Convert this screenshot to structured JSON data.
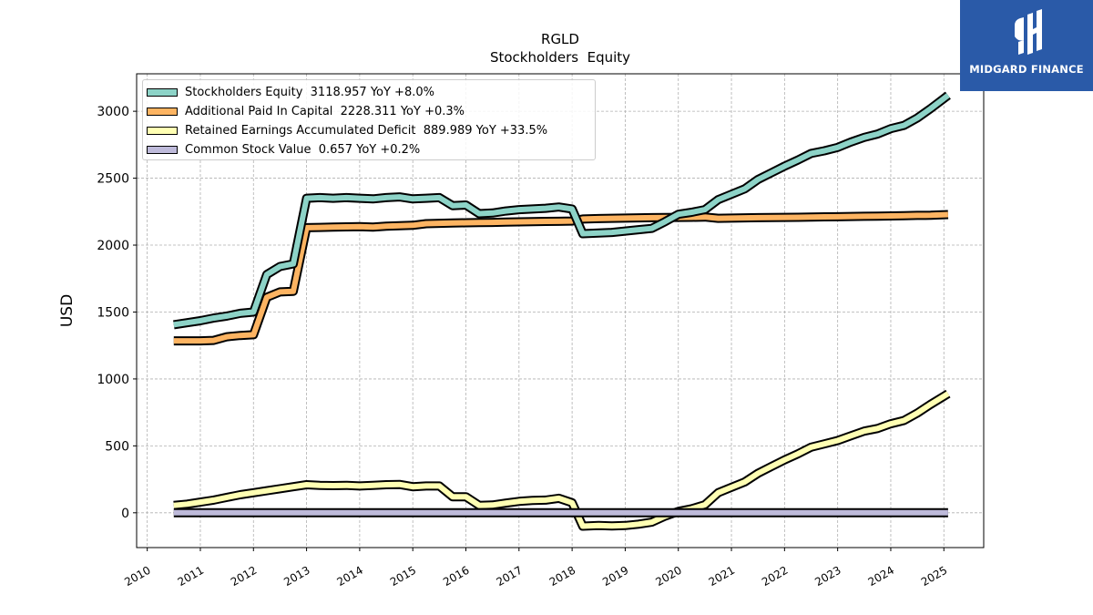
{
  "logo": {
    "name": "MIDGARD FINANCE",
    "accent": "#2a5aa8"
  },
  "chart_data": {
    "type": "line",
    "title": "RGLD",
    "subtitle": "Stockholders  Equity",
    "xlabel": "",
    "ylabel": "USD",
    "xlim": [
      2009.8,
      2025.75
    ],
    "ylim": [
      -260,
      3280
    ],
    "xticks": [
      "2010",
      "2011",
      "2012",
      "2013",
      "2014",
      "2015",
      "2016",
      "2017",
      "2018",
      "2019",
      "2020",
      "2021",
      "2022",
      "2023",
      "2024",
      "2025"
    ],
    "yticks": [
      0,
      500,
      1000,
      1500,
      2000,
      2500,
      3000
    ],
    "grid": true,
    "legend_position": "top-left",
    "series": [
      {
        "name": "Stockholders Equity",
        "legend": "Stockholders Equity  3118.957 YoY +8.0%",
        "color": "#8dd3c7",
        "points": [
          [
            2010.5,
            1405
          ],
          [
            2010.75,
            1420
          ],
          [
            2011.0,
            1435
          ],
          [
            2011.25,
            1455
          ],
          [
            2011.5,
            1470
          ],
          [
            2011.75,
            1490
          ],
          [
            2012.0,
            1500
          ],
          [
            2012.25,
            1780
          ],
          [
            2012.5,
            1840
          ],
          [
            2012.75,
            1860
          ],
          [
            2013.0,
            2350
          ],
          [
            2013.25,
            2355
          ],
          [
            2013.5,
            2350
          ],
          [
            2013.75,
            2355
          ],
          [
            2014.0,
            2350
          ],
          [
            2014.25,
            2345
          ],
          [
            2014.5,
            2355
          ],
          [
            2014.75,
            2360
          ],
          [
            2015.0,
            2345
          ],
          [
            2015.25,
            2350
          ],
          [
            2015.5,
            2355
          ],
          [
            2015.75,
            2295
          ],
          [
            2016.0,
            2300
          ],
          [
            2016.25,
            2235
          ],
          [
            2016.5,
            2240
          ],
          [
            2016.75,
            2255
          ],
          [
            2017.0,
            2265
          ],
          [
            2017.25,
            2270
          ],
          [
            2017.5,
            2275
          ],
          [
            2017.75,
            2285
          ],
          [
            2018.0,
            2270
          ],
          [
            2018.2,
            2085
          ],
          [
            2018.5,
            2090
          ],
          [
            2018.75,
            2095
          ],
          [
            2019.0,
            2105
          ],
          [
            2019.25,
            2115
          ],
          [
            2019.5,
            2125
          ],
          [
            2019.75,
            2175
          ],
          [
            2020.0,
            2230
          ],
          [
            2020.25,
            2245
          ],
          [
            2020.5,
            2265
          ],
          [
            2020.75,
            2340
          ],
          [
            2021.0,
            2380
          ],
          [
            2021.25,
            2420
          ],
          [
            2021.5,
            2490
          ],
          [
            2021.75,
            2540
          ],
          [
            2022.0,
            2590
          ],
          [
            2022.25,
            2635
          ],
          [
            2022.5,
            2685
          ],
          [
            2022.75,
            2705
          ],
          [
            2023.0,
            2730
          ],
          [
            2023.25,
            2770
          ],
          [
            2023.5,
            2805
          ],
          [
            2023.75,
            2830
          ],
          [
            2024.0,
            2870
          ],
          [
            2024.25,
            2895
          ],
          [
            2024.5,
            2950
          ],
          [
            2024.75,
            3020
          ],
          [
            2025.08,
            3119
          ]
        ]
      },
      {
        "name": "Additional Paid In Capital",
        "legend": "Additional Paid In Capital  2228.311 YoY +0.3%",
        "color": "#fdb462",
        "points": [
          [
            2010.5,
            1285
          ],
          [
            2010.75,
            1285
          ],
          [
            2011.0,
            1285
          ],
          [
            2011.25,
            1288
          ],
          [
            2011.5,
            1315
          ],
          [
            2011.75,
            1325
          ],
          [
            2012.0,
            1330
          ],
          [
            2012.25,
            1610
          ],
          [
            2012.5,
            1650
          ],
          [
            2012.75,
            1655
          ],
          [
            2013.0,
            2130
          ],
          [
            2013.25,
            2132
          ],
          [
            2013.5,
            2134
          ],
          [
            2013.75,
            2136
          ],
          [
            2014.0,
            2138
          ],
          [
            2014.25,
            2135
          ],
          [
            2014.5,
            2142
          ],
          [
            2014.75,
            2145
          ],
          [
            2015.0,
            2148
          ],
          [
            2015.25,
            2160
          ],
          [
            2015.5,
            2163
          ],
          [
            2015.75,
            2165
          ],
          [
            2016.0,
            2167
          ],
          [
            2016.25,
            2168
          ],
          [
            2016.5,
            2170
          ],
          [
            2016.75,
            2172
          ],
          [
            2017.0,
            2174
          ],
          [
            2017.25,
            2175
          ],
          [
            2017.5,
            2177
          ],
          [
            2017.75,
            2178
          ],
          [
            2018.0,
            2180
          ],
          [
            2018.2,
            2195
          ],
          [
            2018.5,
            2198
          ],
          [
            2018.75,
            2200
          ],
          [
            2019.0,
            2202
          ],
          [
            2019.25,
            2204
          ],
          [
            2019.5,
            2205
          ],
          [
            2019.75,
            2206
          ],
          [
            2020.0,
            2207
          ],
          [
            2020.25,
            2208
          ],
          [
            2020.5,
            2210
          ],
          [
            2020.75,
            2200
          ],
          [
            2021.0,
            2202
          ],
          [
            2021.25,
            2204
          ],
          [
            2021.5,
            2205
          ],
          [
            2021.75,
            2206
          ],
          [
            2022.0,
            2207
          ],
          [
            2022.25,
            2208
          ],
          [
            2022.5,
            2210
          ],
          [
            2022.75,
            2211
          ],
          [
            2023.0,
            2212
          ],
          [
            2023.25,
            2214
          ],
          [
            2023.5,
            2215
          ],
          [
            2023.75,
            2216
          ],
          [
            2024.0,
            2218
          ],
          [
            2024.25,
            2220
          ],
          [
            2024.5,
            2222
          ],
          [
            2024.75,
            2223
          ],
          [
            2025.08,
            2228
          ]
        ]
      },
      {
        "name": "Retained Earnings Accumulated Deficit",
        "legend": "Retained Earnings Accumulated Deficit  889.989 YoY +33.5%",
        "color": "#ffffb3",
        "points": [
          [
            2010.5,
            55
          ],
          [
            2010.75,
            65
          ],
          [
            2011.0,
            80
          ],
          [
            2011.25,
            95
          ],
          [
            2011.5,
            115
          ],
          [
            2011.75,
            135
          ],
          [
            2012.0,
            150
          ],
          [
            2012.25,
            165
          ],
          [
            2012.5,
            180
          ],
          [
            2012.75,
            195
          ],
          [
            2013.0,
            210
          ],
          [
            2013.25,
            205
          ],
          [
            2013.5,
            203
          ],
          [
            2013.75,
            205
          ],
          [
            2014.0,
            200
          ],
          [
            2014.25,
            205
          ],
          [
            2014.5,
            210
          ],
          [
            2014.75,
            212
          ],
          [
            2015.0,
            195
          ],
          [
            2015.25,
            200
          ],
          [
            2015.5,
            200
          ],
          [
            2015.75,
            120
          ],
          [
            2016.0,
            120
          ],
          [
            2016.25,
            55
          ],
          [
            2016.5,
            58
          ],
          [
            2016.75,
            72
          ],
          [
            2017.0,
            85
          ],
          [
            2017.25,
            92
          ],
          [
            2017.5,
            95
          ],
          [
            2017.75,
            108
          ],
          [
            2018.0,
            75
          ],
          [
            2018.2,
            -100
          ],
          [
            2018.5,
            -95
          ],
          [
            2018.75,
            -98
          ],
          [
            2019.0,
            -95
          ],
          [
            2019.25,
            -85
          ],
          [
            2019.5,
            -70
          ],
          [
            2019.75,
            -25
          ],
          [
            2020.0,
            10
          ],
          [
            2020.25,
            30
          ],
          [
            2020.5,
            60
          ],
          [
            2020.75,
            150
          ],
          [
            2021.0,
            190
          ],
          [
            2021.25,
            230
          ],
          [
            2021.5,
            295
          ],
          [
            2021.75,
            345
          ],
          [
            2022.0,
            395
          ],
          [
            2022.25,
            440
          ],
          [
            2022.5,
            490
          ],
          [
            2022.75,
            515
          ],
          [
            2023.0,
            540
          ],
          [
            2023.25,
            575
          ],
          [
            2023.5,
            610
          ],
          [
            2023.75,
            630
          ],
          [
            2024.0,
            665
          ],
          [
            2024.25,
            690
          ],
          [
            2024.5,
            745
          ],
          [
            2024.75,
            810
          ],
          [
            2025.08,
            890
          ]
        ]
      },
      {
        "name": "Common Stock Value",
        "legend": "Common Stock Value  0.657 YoY +0.2%",
        "color": "#bebada",
        "points": [
          [
            2010.5,
            0.6
          ],
          [
            2025.08,
            0.657
          ]
        ]
      }
    ]
  }
}
